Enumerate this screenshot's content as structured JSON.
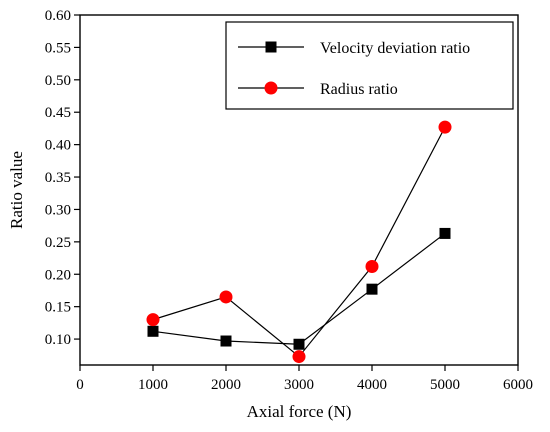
{
  "chart_data": {
    "type": "line",
    "xlabel": "Axial force (N)",
    "ylabel": "Ratio value",
    "xlim": [
      0,
      6000
    ],
    "ylim": [
      0.06,
      0.6
    ],
    "xticks": [
      0,
      1000,
      2000,
      3000,
      4000,
      5000,
      6000
    ],
    "yticks": [
      0.1,
      0.15,
      0.2,
      0.25,
      0.3,
      0.35,
      0.4,
      0.45,
      0.5,
      0.55,
      0.6
    ],
    "x": [
      1000,
      2000,
      3000,
      4000,
      5000
    ],
    "grid": false,
    "legend_position": "top-right",
    "series": [
      {
        "name": "Velocity deviation ratio",
        "marker": "square",
        "color": "#000000",
        "values": [
          0.112,
          0.097,
          0.092,
          0.177,
          0.263
        ]
      },
      {
        "name": "Radius ratio",
        "marker": "circle",
        "color": "#ff0000",
        "values": [
          0.13,
          0.165,
          0.073,
          0.212,
          0.427
        ]
      }
    ]
  }
}
